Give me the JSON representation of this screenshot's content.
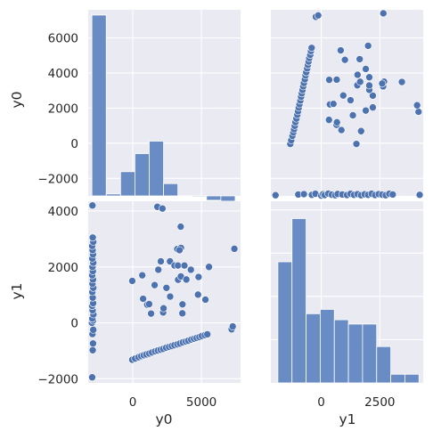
{
  "chart_data": {
    "type": "pairplot",
    "variables": [
      "y0",
      "y1"
    ],
    "marker_color": "#4c72b0",
    "hist_color": "#6a8cc4",
    "panel_background": "#eaeaf2",
    "grid_color": "#ffffff",
    "axis_labels": {
      "x": [
        "y0",
        "y1"
      ],
      "y": [
        "y0",
        "y1"
      ]
    },
    "y0_axis": {
      "range": [
        -3000,
        7600
      ],
      "ticks": [
        -2000,
        0,
        2000,
        4000,
        6000
      ],
      "tick_labels": [
        "−2000",
        "0",
        "2000",
        "4000",
        "6000"
      ]
    },
    "y0_xaxis": {
      "range": [
        -3250,
        7850
      ],
      "ticks": [
        0,
        5000
      ],
      "tick_labels": [
        "0",
        "5000"
      ]
    },
    "y1_axis": {
      "range": [
        -2150,
        4350
      ],
      "ticks": [
        -2000,
        0,
        2000,
        4000
      ],
      "tick_labels": [
        "−2000",
        "0",
        "2000",
        "4000"
      ]
    },
    "y1_xaxis": {
      "range": [
        -2150,
        4350
      ],
      "ticks": [
        0,
        2500
      ],
      "tick_labels": [
        "0",
        "2500"
      ]
    },
    "hist_y0": {
      "bin_edges": [
        -2981,
        -1937,
        -893,
        151,
        1195,
        2239,
        3283,
        4327,
        5371,
        6415,
        7459
      ],
      "heights": [
        7300,
        -2890,
        -1620,
        -590,
        120,
        -2300,
        -2990,
        -3050,
        -3250,
        -3300
      ],
      "note_values_are_in_y0_axis_units": true
    },
    "hist_y1": {
      "bin_edges": [
        -1850,
        -1248,
        -646,
        -44,
        558,
        1160,
        1762,
        2364,
        2966,
        3568,
        4170
      ],
      "counts": [
        14,
        19,
        8,
        8.5,
        7.3,
        6.8,
        6.8,
        4.2,
        1,
        1
      ],
      "ymax": 21
    },
    "cluster_A": [
      [
        -2960,
        -1950
      ],
      [
        -2920,
        -980
      ],
      [
        -2900,
        -740
      ],
      [
        -2940,
        -400
      ],
      [
        -2880,
        -250
      ],
      [
        -2980,
        0
      ],
      [
        -2900,
        80
      ],
      [
        -2950,
        150
      ],
      [
        -2870,
        300
      ],
      [
        -2930,
        450
      ],
      [
        -2960,
        600
      ],
      [
        -2890,
        700
      ],
      [
        -2920,
        900
      ],
      [
        -2950,
        1100
      ],
      [
        -2880,
        1250
      ],
      [
        -2940,
        1400
      ],
      [
        -2900,
        1550
      ],
      [
        -2960,
        1700
      ],
      [
        -2910,
        1850
      ],
      [
        -2940,
        2000
      ],
      [
        -2880,
        2150
      ],
      [
        -2950,
        2300
      ],
      [
        -2900,
        2450
      ],
      [
        -2930,
        2600
      ],
      [
        -2960,
        2750
      ],
      [
        -2880,
        2900
      ],
      [
        -2920,
        3050
      ],
      [
        -2940,
        4200
      ]
    ],
    "cluster_B": [
      [
        -40,
        -1320
      ],
      [
        170,
        -1280
      ],
      [
        420,
        -1230
      ],
      [
        620,
        -1190
      ],
      [
        800,
        -1160
      ],
      [
        990,
        -1130
      ],
      [
        1200,
        -1100
      ],
      [
        1400,
        -1060
      ],
      [
        1620,
        -1020
      ],
      [
        1820,
        -990
      ],
      [
        2030,
        -960
      ],
      [
        2220,
        -930
      ],
      [
        2430,
        -890
      ],
      [
        2640,
        -860
      ],
      [
        2840,
        -830
      ],
      [
        3030,
        -800
      ],
      [
        3240,
        -770
      ],
      [
        3430,
        -740
      ],
      [
        3640,
        -700
      ],
      [
        3860,
        -670
      ],
      [
        4040,
        -640
      ],
      [
        4260,
        -600
      ],
      [
        4460,
        -570
      ],
      [
        4650,
        -540
      ],
      [
        4850,
        -510
      ],
      [
        5030,
        -470
      ],
      [
        5250,
        -440
      ],
      [
        5430,
        -410
      ],
      [
        7200,
        -230
      ],
      [
        7280,
        -130
      ]
    ],
    "cluster_C": [
      [
        -40,
        1500
      ],
      [
        690,
        1700
      ],
      [
        750,
        860
      ],
      [
        1050,
        650
      ],
      [
        1190,
        670
      ],
      [
        1330,
        330
      ],
      [
        1590,
        1350
      ],
      [
        1860,
        1900
      ],
      [
        2040,
        2200
      ],
      [
        2210,
        370
      ],
      [
        2240,
        520
      ],
      [
        2450,
        1250
      ],
      [
        1790,
        4150
      ],
      [
        2160,
        4090
      ],
      [
        2710,
        2200
      ],
      [
        3040,
        2050
      ],
      [
        3240,
        2640
      ],
      [
        3290,
        2050
      ],
      [
        3300,
        1540
      ],
      [
        3490,
        3440
      ],
      [
        3510,
        2680
      ],
      [
        3400,
        2600
      ],
      [
        3500,
        1660
      ],
      [
        3620,
        660
      ],
      [
        3610,
        340
      ],
      [
        3760,
        2050
      ],
      [
        3900,
        1550
      ],
      [
        4230,
        1900
      ],
      [
        4750,
        1010
      ],
      [
        4790,
        1640
      ],
      [
        5290,
        830
      ],
      [
        5550,
        2000
      ],
      [
        2720,
        940
      ],
      [
        7400,
        2650
      ]
    ]
  }
}
